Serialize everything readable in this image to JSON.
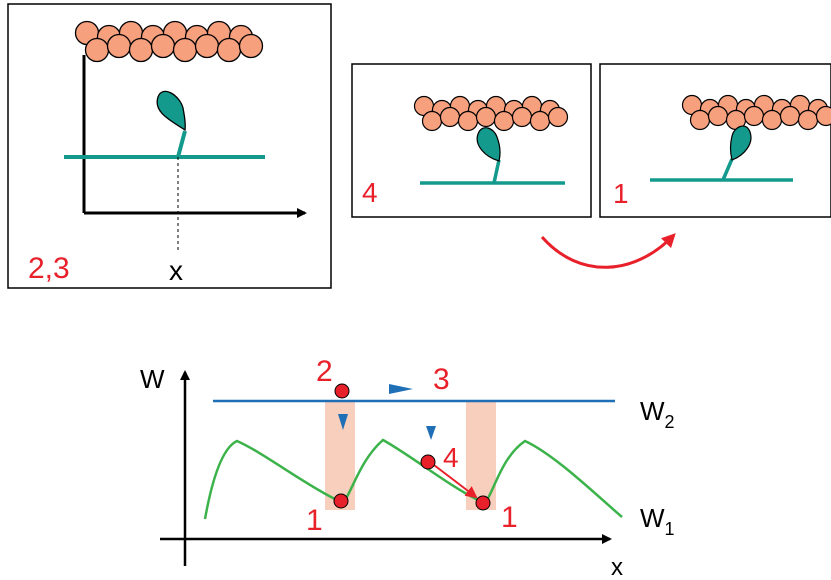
{
  "panel_a": {
    "state_label": "2,3",
    "axis_label": "x"
  },
  "panel_b": {
    "state_label": "4"
  },
  "panel_c": {
    "state_label": "1"
  },
  "energy_plot": {
    "y_axis_label": "W",
    "x_axis_label": "x",
    "upper_curve_label": "W",
    "upper_curve_subscript": "2",
    "lower_curve_label": "W",
    "lower_curve_subscript": "1",
    "points": {
      "p2": "2",
      "p3": "3",
      "p4": "4",
      "p1_left": "1",
      "p1_right": "1"
    }
  },
  "colors": {
    "label_red": "#e8202a",
    "actin_bead": "#f7a07e",
    "myosin_teal": "#139a8c",
    "w2_line_blue": "#1f6fb7",
    "w1_curve_green": "#3cb34a",
    "transition_band": "#f7c6b0",
    "arrow_blue": "#1f6fb7"
  }
}
